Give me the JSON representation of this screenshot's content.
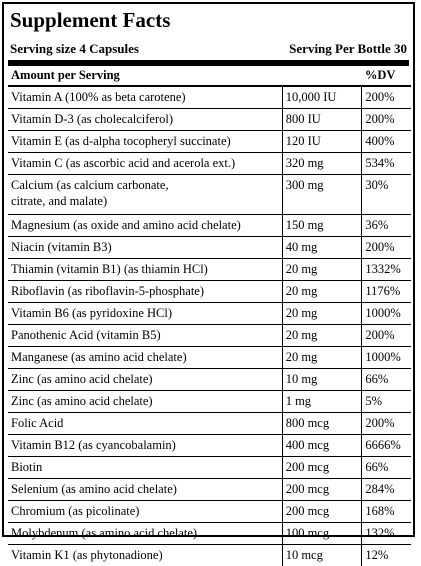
{
  "title": "Supplement Facts",
  "serving_size": "Serving size 4 Capsules",
  "servings_per": "Serving Per Bottle 30",
  "header": {
    "amount": "Amount per Serving",
    "dv": "%DV"
  },
  "rows": [
    {
      "name": "Vitamin A (100% as beta carotene)",
      "amount": "10,000 IU",
      "dv": "200%"
    },
    {
      "name": "Vitamin D-3 (as cholecalciferol)",
      "amount": "800 IU",
      "dv": "200%"
    },
    {
      "name": "Vitamin E (as d-alpha tocopheryl succinate)",
      "amount": "120 IU",
      "dv": "400%"
    },
    {
      "name": "Vitamin C (as ascorbic acid and acerola ext.)",
      "amount": "320 mg",
      "dv": "534%"
    },
    {
      "name_lines": [
        "Calcium (as calcium carbonate,",
        "citrate, and malate)"
      ],
      "amount": "300 mg",
      "dv": "30%"
    },
    {
      "name": "Magnesium (as oxide and amino acid chelate)",
      "amount": "150 mg",
      "dv": "36%"
    },
    {
      "name": "Niacin (vitamin B3)",
      "amount": "40 mg",
      "dv": "200%"
    },
    {
      "name": "Thiamin (vitamin B1) (as thiamin HCl)",
      "amount": "20 mg",
      "dv": "1332%"
    },
    {
      "name": "Riboflavin (as riboflavin-5-phosphate)",
      "amount": "20 mg",
      "dv": "1176%"
    },
    {
      "name": "Vitamin B6 (as pyridoxine HCl)",
      "amount": "20 mg",
      "dv": "1000%"
    },
    {
      "name": "Panothenic Acid (vitamin B5)",
      "amount": "20 mg",
      "dv": "200%"
    },
    {
      "name": "Manganese (as amino acid chelate)",
      "amount": "20 mg",
      "dv": "1000%"
    },
    {
      "name": "Zinc (as amino acid chelate)",
      "amount": "10 mg",
      "dv": "66%"
    },
    {
      "name": "Zinc (as amino acid chelate)",
      "amount": "1 mg",
      "dv": "5%"
    },
    {
      "name": "Folic Acid",
      "amount": "800 mcg",
      "dv": "200%"
    },
    {
      "name": "Vitamin B12 (as cyancobalamin)",
      "amount": "400 mcg",
      "dv": "6666%"
    },
    {
      "name": "Biotin",
      "amount": "200 mcg",
      "dv": "66%"
    },
    {
      "name": "Selenium (as amino acid chelate)",
      "amount": "200 mcg",
      "dv": "284%"
    },
    {
      "name": "Chromium (as picolinate)",
      "amount": "200 mcg",
      "dv": "168%"
    },
    {
      "name": "Molybdenum (as amino acid chelate)",
      "amount": "100 mcg",
      "dv": "132%"
    },
    {
      "name": "Vitamin K1 (as phytonadione)",
      "amount": "10 mcg",
      "dv": "12%"
    }
  ]
}
